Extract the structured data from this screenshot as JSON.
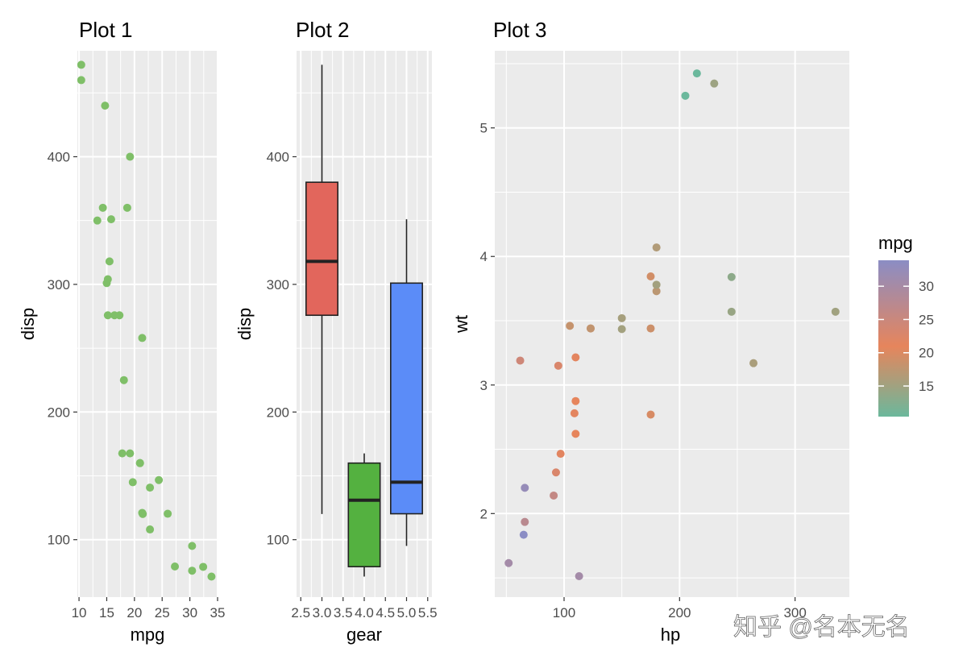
{
  "watermark": "知乎 @名本无名",
  "chart_data": [
    {
      "type": "scatter",
      "title": "Plot 1",
      "xlabel": "mpg",
      "ylabel": "disp",
      "xlim": [
        9.7,
        35
      ],
      "ylim": [
        55,
        483
      ],
      "xticks": [
        10,
        15,
        20,
        25,
        30,
        35
      ],
      "yticks": [
        100,
        200,
        300,
        400
      ],
      "point_color": "#7fbf68",
      "points": [
        {
          "x": 21.0,
          "y": 160
        },
        {
          "x": 21.0,
          "y": 160
        },
        {
          "x": 22.8,
          "y": 108
        },
        {
          "x": 21.4,
          "y": 258
        },
        {
          "x": 18.7,
          "y": 360
        },
        {
          "x": 18.1,
          "y": 225
        },
        {
          "x": 14.3,
          "y": 360
        },
        {
          "x": 24.4,
          "y": 146.7
        },
        {
          "x": 22.8,
          "y": 140.8
        },
        {
          "x": 19.2,
          "y": 167.6
        },
        {
          "x": 17.8,
          "y": 167.6
        },
        {
          "x": 16.4,
          "y": 275.8
        },
        {
          "x": 17.3,
          "y": 275.8
        },
        {
          "x": 15.2,
          "y": 275.8
        },
        {
          "x": 10.4,
          "y": 472
        },
        {
          "x": 10.4,
          "y": 460
        },
        {
          "x": 14.7,
          "y": 440
        },
        {
          "x": 32.4,
          "y": 78.7
        },
        {
          "x": 30.4,
          "y": 75.7
        },
        {
          "x": 33.9,
          "y": 71.1
        },
        {
          "x": 21.5,
          "y": 120.1
        },
        {
          "x": 15.5,
          "y": 318
        },
        {
          "x": 15.2,
          "y": 304
        },
        {
          "x": 13.3,
          "y": 350
        },
        {
          "x": 19.2,
          "y": 400
        },
        {
          "x": 27.3,
          "y": 79
        },
        {
          "x": 26.0,
          "y": 120.3
        },
        {
          "x": 30.4,
          "y": 95.1
        },
        {
          "x": 15.8,
          "y": 351
        },
        {
          "x": 19.7,
          "y": 145
        },
        {
          "x": 15.0,
          "y": 301
        },
        {
          "x": 21.4,
          "y": 121
        }
      ]
    },
    {
      "type": "boxplot",
      "title": "Plot 2",
      "xlabel": "gear",
      "ylabel": "disp",
      "xlim": [
        2.4,
        5.6
      ],
      "ylim": [
        55,
        483
      ],
      "xticks": [
        "2.5",
        "3.0",
        "3.5",
        "4.0",
        "4.5",
        "5.0",
        "5.5"
      ],
      "xtick_values": [
        2.5,
        3.0,
        3.5,
        4.0,
        4.5,
        5.0,
        5.5
      ],
      "yticks": [
        100,
        200,
        300,
        400
      ],
      "boxes": [
        {
          "x": 3,
          "min": 120.1,
          "q1": 275.8,
          "median": 318,
          "q3": 380,
          "max": 472,
          "color": "#e2665c"
        },
        {
          "x": 4,
          "min": 71.1,
          "q1": 78.85,
          "median": 130.9,
          "q3": 160,
          "max": 167.6,
          "color": "#54b140"
        },
        {
          "x": 5,
          "min": 95.1,
          "q1": 120.3,
          "median": 145,
          "q3": 301,
          "max": 351,
          "color": "#5b8cf8"
        }
      ]
    },
    {
      "type": "scatter",
      "title": "Plot 3",
      "xlabel": "hp",
      "ylabel": "wt",
      "xlim": [
        40,
        347
      ],
      "ylim": [
        1.35,
        5.6
      ],
      "xticks": [
        100,
        200,
        300
      ],
      "yticks": [
        2,
        3,
        4,
        5
      ],
      "color_variable": "mpg",
      "legend": {
        "title": "mpg",
        "position": "right",
        "ticks": [
          15,
          20,
          25,
          30
        ],
        "range": [
          10.4,
          33.9
        ],
        "gradient": [
          "#6bb89c",
          "#e6855c",
          "#8b8dc4"
        ]
      },
      "points": [
        {
          "x": 110,
          "y": 2.62,
          "mpg": 21.0
        },
        {
          "x": 110,
          "y": 2.875,
          "mpg": 21.0
        },
        {
          "x": 93,
          "y": 2.32,
          "mpg": 22.8
        },
        {
          "x": 110,
          "y": 3.215,
          "mpg": 21.4
        },
        {
          "x": 175,
          "y": 3.44,
          "mpg": 18.7
        },
        {
          "x": 105,
          "y": 3.46,
          "mpg": 18.1
        },
        {
          "x": 245,
          "y": 3.57,
          "mpg": 14.3
        },
        {
          "x": 62,
          "y": 3.19,
          "mpg": 24.4
        },
        {
          "x": 95,
          "y": 3.15,
          "mpg": 22.8
        },
        {
          "x": 123,
          "y": 3.44,
          "mpg": 19.2
        },
        {
          "x": 123,
          "y": 3.44,
          "mpg": 17.8
        },
        {
          "x": 180,
          "y": 4.07,
          "mpg": 16.4
        },
        {
          "x": 180,
          "y": 3.73,
          "mpg": 17.3
        },
        {
          "x": 180,
          "y": 3.78,
          "mpg": 15.2
        },
        {
          "x": 205,
          "y": 5.25,
          "mpg": 10.4
        },
        {
          "x": 215,
          "y": 5.424,
          "mpg": 10.4
        },
        {
          "x": 230,
          "y": 5.345,
          "mpg": 14.7
        },
        {
          "x": 66,
          "y": 2.2,
          "mpg": 32.4
        },
        {
          "x": 52,
          "y": 1.615,
          "mpg": 30.4
        },
        {
          "x": 65,
          "y": 1.835,
          "mpg": 33.9
        },
        {
          "x": 97,
          "y": 2.465,
          "mpg": 21.5
        },
        {
          "x": 150,
          "y": 3.52,
          "mpg": 15.5
        },
        {
          "x": 150,
          "y": 3.435,
          "mpg": 15.2
        },
        {
          "x": 245,
          "y": 3.84,
          "mpg": 13.3
        },
        {
          "x": 175,
          "y": 3.845,
          "mpg": 19.2
        },
        {
          "x": 66,
          "y": 1.935,
          "mpg": 27.3
        },
        {
          "x": 91,
          "y": 2.14,
          "mpg": 26.0
        },
        {
          "x": 113,
          "y": 1.513,
          "mpg": 30.4
        },
        {
          "x": 264,
          "y": 3.17,
          "mpg": 15.8
        },
        {
          "x": 175,
          "y": 2.77,
          "mpg": 19.7
        },
        {
          "x": 335,
          "y": 3.57,
          "mpg": 15.0
        },
        {
          "x": 109,
          "y": 2.78,
          "mpg": 21.4
        }
      ]
    }
  ]
}
